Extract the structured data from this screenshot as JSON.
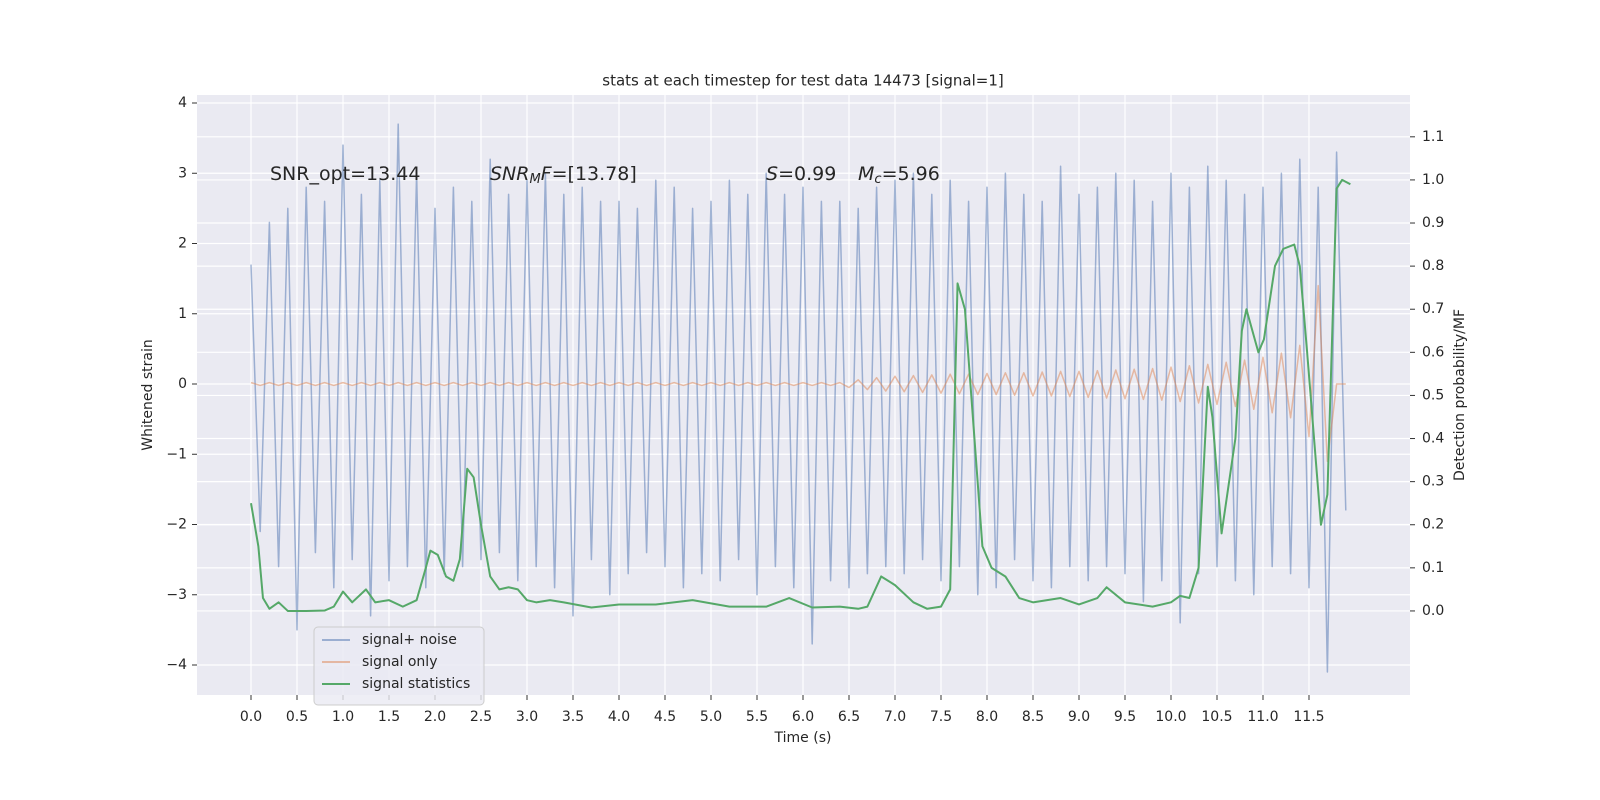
{
  "chart_data": {
    "type": "line",
    "title": "stats at each timestep for test data 14473 [signal=1]",
    "xlabel": "Time (s)",
    "ylabel": "Whitened strain",
    "y2label": "Detection probability/MF",
    "xlim": [
      -0.587,
      12.598
    ],
    "ylim": [
      -4.427,
      4.114
    ],
    "y2lim": [
      -0.195,
      1.197
    ],
    "xticks": [
      {
        "value": 0,
        "label": "0.0"
      },
      {
        "value": 0.5,
        "label": "0.5"
      },
      {
        "value": 1,
        "label": "1.0"
      },
      {
        "value": 1.5,
        "label": "1.5"
      },
      {
        "value": 2,
        "label": "2.0"
      },
      {
        "value": 2.5,
        "label": "2.5"
      },
      {
        "value": 3,
        "label": "3.0"
      },
      {
        "value": 3.5,
        "label": "3.5"
      },
      {
        "value": 4,
        "label": "4.0"
      },
      {
        "value": 4.5,
        "label": "4.5"
      },
      {
        "value": 5,
        "label": "5.0"
      },
      {
        "value": 5.5,
        "label": "5.5"
      },
      {
        "value": 6,
        "label": "6.0"
      },
      {
        "value": 6.5,
        "label": "6.5"
      },
      {
        "value": 7,
        "label": "7.0"
      },
      {
        "value": 7.5,
        "label": "7.5"
      },
      {
        "value": 8,
        "label": "8.0"
      },
      {
        "value": 8.5,
        "label": "8.5"
      },
      {
        "value": 9,
        "label": "9.0"
      },
      {
        "value": 9.5,
        "label": "9.5"
      },
      {
        "value": 10,
        "label": "10.0"
      },
      {
        "value": 10.5,
        "label": "10.5"
      },
      {
        "value": 11,
        "label": "11.0"
      },
      {
        "value": 11.5,
        "label": "11.5"
      }
    ],
    "yticks": [
      {
        "value": -4,
        "label": "−4"
      },
      {
        "value": -3,
        "label": "−3"
      },
      {
        "value": -2,
        "label": "−2"
      },
      {
        "value": -1,
        "label": "−1"
      },
      0,
      1,
      2,
      3,
      4
    ],
    "y2ticks": [
      {
        "value": 0,
        "label": "0.0"
      },
      {
        "value": 0.1,
        "label": "0.1"
      },
      {
        "value": 0.2,
        "label": "0.2"
      },
      {
        "value": 0.3,
        "label": "0.3"
      },
      {
        "value": 0.4,
        "label": "0.4"
      },
      {
        "value": 0.5,
        "label": "0.5"
      },
      {
        "value": 0.6,
        "label": "0.6"
      },
      {
        "value": 0.7,
        "label": "0.7"
      },
      {
        "value": 0.8,
        "label": "0.8"
      },
      {
        "value": 0.9,
        "label": "0.9"
      },
      {
        "value": 1,
        "label": "1.0"
      },
      {
        "value": 1.1,
        "label": "1.1"
      }
    ],
    "grid": true,
    "legend_loc": "lower left",
    "annotations": [
      {
        "parts": [
          {
            "text": "SNR_opt=13.44"
          }
        ]
      },
      {
        "parts": [
          {
            "text": "SNR",
            "italic": true
          },
          {
            "text": "M",
            "italic": true,
            "sub": true
          },
          {
            "text": "F",
            "italic": true
          },
          {
            "text": "=[13.78]"
          }
        ]
      },
      {
        "parts": [
          {
            "text": "S",
            "italic": true
          },
          {
            "text": "=0.99"
          }
        ]
      },
      {
        "parts": [
          {
            "text": "M",
            "italic": true
          },
          {
            "text": "c",
            "italic": true,
            "sub": true
          },
          {
            "text": "=5.96"
          }
        ]
      }
    ],
    "x": [
      0,
      0.1,
      0.2,
      0.3,
      0.4,
      0.5,
      0.6,
      0.7,
      0.8,
      0.9,
      1,
      1.1,
      1.2,
      1.3,
      1.4,
      1.5,
      1.6,
      1.7,
      1.8,
      1.9,
      2,
      2.1,
      2.2,
      2.3,
      2.4,
      2.5,
      2.6,
      2.7,
      2.8,
      2.9,
      3,
      3.1,
      3.2,
      3.3,
      3.4,
      3.5,
      3.6,
      3.7,
      3.8,
      3.9,
      4,
      4.1,
      4.2,
      4.3,
      4.4,
      4.5,
      4.6,
      4.7,
      4.8,
      4.9,
      5,
      5.1,
      5.2,
      5.3,
      5.4,
      5.5,
      5.6,
      5.7,
      5.8,
      5.9,
      6,
      6.1,
      6.2,
      6.3,
      6.4,
      6.5,
      6.6,
      6.7,
      6.8,
      6.9,
      7,
      7.1,
      7.2,
      7.3,
      7.4,
      7.5,
      7.6,
      7.7,
      7.8,
      7.9,
      8,
      8.1,
      8.2,
      8.3,
      8.4,
      8.5,
      8.6,
      8.7,
      8.8,
      8.9,
      9,
      9.1,
      9.2,
      9.3,
      9.4,
      9.5,
      9.6,
      9.7,
      9.8,
      9.9,
      10,
      10.1,
      10.2,
      10.3,
      10.4,
      10.5,
      10.6,
      10.7,
      10.8,
      10.9,
      11,
      11.1,
      11.2,
      11.3,
      11.4,
      11.5,
      11.6,
      11.7,
      11.8,
      11.9
    ],
    "series": [
      {
        "name": "signal+ noise",
        "color": "#4c72b0",
        "values": [
          1.7,
          -2.1,
          2.3,
          -2.6,
          2.5,
          -3.5,
          2.8,
          -2.4,
          2.6,
          -2.9,
          3.4,
          -2.5,
          2.7,
          -3.3,
          2.9,
          -2.8,
          3.7,
          -2.6,
          3.0,
          -2.9,
          2.5,
          -2.7,
          2.8,
          -2.6,
          2.6,
          -2.5,
          3.2,
          -2.4,
          2.7,
          -2.8,
          2.9,
          -2.6,
          3.0,
          -2.9,
          2.7,
          -3.3,
          2.8,
          -2.5,
          2.6,
          -3.0,
          2.6,
          -2.7,
          2.5,
          -2.4,
          2.9,
          -2.6,
          2.8,
          -2.9,
          2.5,
          -2.7,
          2.6,
          -2.8,
          2.9,
          -2.5,
          2.7,
          -3.0,
          3.0,
          -2.6,
          2.7,
          -2.9,
          2.8,
          -3.7,
          2.6,
          -2.8,
          2.6,
          -2.9,
          2.5,
          -2.7,
          2.8,
          -2.6,
          2.9,
          -2.7,
          3.0,
          -2.5,
          2.7,
          -2.8,
          2.9,
          -2.6,
          2.6,
          -3.0,
          2.8,
          -2.9,
          3.0,
          -2.5,
          2.7,
          -2.8,
          2.6,
          -2.9,
          3.1,
          -2.6,
          2.7,
          -2.8,
          2.8,
          -2.6,
          3.0,
          -2.7,
          2.9,
          -3.1,
          2.6,
          -2.8,
          3.0,
          -3.4,
          2.8,
          -2.7,
          3.1,
          -2.6,
          2.9,
          -2.8,
          2.7,
          -3.0,
          2.8,
          -2.6,
          3.0,
          -2.7,
          3.2,
          -2.9,
          2.8,
          -4.1,
          3.3,
          -1.8
        ]
      },
      {
        "name": "signal only",
        "color": "#dd8452",
        "values": [
          0.02,
          -0.02,
          0.02,
          -0.02,
          0.02,
          -0.02,
          0.02,
          -0.02,
          0.02,
          -0.02,
          0.02,
          -0.02,
          0.02,
          -0.02,
          0.02,
          -0.02,
          0.02,
          -0.02,
          0.02,
          -0.02,
          0.02,
          -0.02,
          0.02,
          -0.02,
          0.02,
          -0.02,
          0.02,
          -0.02,
          0.02,
          -0.02,
          0.02,
          -0.02,
          0.02,
          -0.02,
          0.02,
          -0.02,
          0.02,
          -0.02,
          0.02,
          -0.02,
          0.02,
          -0.02,
          0.02,
          -0.02,
          0.02,
          -0.02,
          0.02,
          -0.02,
          0.02,
          -0.02,
          0.02,
          -0.02,
          0.02,
          -0.02,
          0.02,
          -0.02,
          0.02,
          -0.02,
          0.02,
          -0.02,
          0.02,
          -0.02,
          0.02,
          -0.02,
          0.02,
          -0.05,
          0.06,
          -0.08,
          0.09,
          -0.1,
          0.11,
          -0.11,
          0.12,
          -0.12,
          0.13,
          -0.13,
          0.14,
          -0.14,
          0.14,
          -0.15,
          0.15,
          -0.15,
          0.16,
          -0.16,
          0.16,
          -0.17,
          0.17,
          -0.17,
          0.18,
          -0.18,
          0.18,
          -0.19,
          0.19,
          -0.2,
          0.2,
          -0.21,
          0.21,
          -0.22,
          0.22,
          -0.23,
          0.24,
          -0.25,
          0.26,
          -0.27,
          0.28,
          -0.29,
          0.31,
          -0.32,
          0.34,
          -0.36,
          0.38,
          -0.41,
          0.44,
          -0.48,
          0.55,
          -0.75,
          1.4,
          -1.1,
          0,
          0
        ]
      },
      {
        "name": "signal statistics",
        "color": "#55a868",
        "axis": "y2",
        "x": [
          0,
          0.08,
          0.13,
          0.2,
          0.3,
          0.4,
          0.6,
          0.8,
          0.9,
          1.0,
          1.1,
          1.25,
          1.35,
          1.5,
          1.65,
          1.8,
          1.9,
          1.95,
          2.03,
          2.12,
          2.2,
          2.27,
          2.35,
          2.42,
          2.5,
          2.6,
          2.7,
          2.8,
          2.9,
          3.0,
          3.1,
          3.25,
          3.4,
          3.7,
          4.0,
          4.4,
          4.8,
          5.2,
          5.6,
          5.85,
          6.1,
          6.4,
          6.6,
          6.7,
          6.85,
          7.0,
          7.2,
          7.35,
          7.5,
          7.6,
          7.68,
          7.76,
          7.95,
          8.05,
          8.2,
          8.35,
          8.5,
          8.8,
          9.0,
          9.2,
          9.3,
          9.5,
          9.8,
          10.0,
          10.1,
          10.2,
          10.3,
          10.4,
          10.45,
          10.55,
          10.7,
          10.77,
          10.82,
          10.95,
          11.01,
          11.13,
          11.22,
          11.34,
          11.4,
          11.48,
          11.63,
          11.7,
          11.8,
          11.86,
          11.95
        ],
        "values": [
          0.25,
          0.15,
          0.03,
          0.005,
          0.02,
          0.0,
          0.0,
          0.001,
          0.01,
          0.045,
          0.02,
          0.05,
          0.02,
          0.025,
          0.01,
          0.025,
          0.1,
          0.14,
          0.13,
          0.08,
          0.07,
          0.12,
          0.33,
          0.31,
          0.2,
          0.08,
          0.05,
          0.055,
          0.05,
          0.025,
          0.02,
          0.025,
          0.02,
          0.008,
          0.015,
          0.015,
          0.025,
          0.01,
          0.01,
          0.03,
          0.008,
          0.01,
          0.005,
          0.01,
          0.08,
          0.06,
          0.02,
          0.005,
          0.01,
          0.05,
          0.76,
          0.7,
          0.15,
          0.1,
          0.08,
          0.03,
          0.02,
          0.03,
          0.015,
          0.03,
          0.055,
          0.02,
          0.01,
          0.02,
          0.035,
          0.03,
          0.1,
          0.52,
          0.45,
          0.18,
          0.4,
          0.65,
          0.7,
          0.6,
          0.63,
          0.8,
          0.84,
          0.85,
          0.8,
          0.6,
          0.2,
          0.27,
          0.98,
          1.0,
          0.99
        ]
      }
    ]
  }
}
